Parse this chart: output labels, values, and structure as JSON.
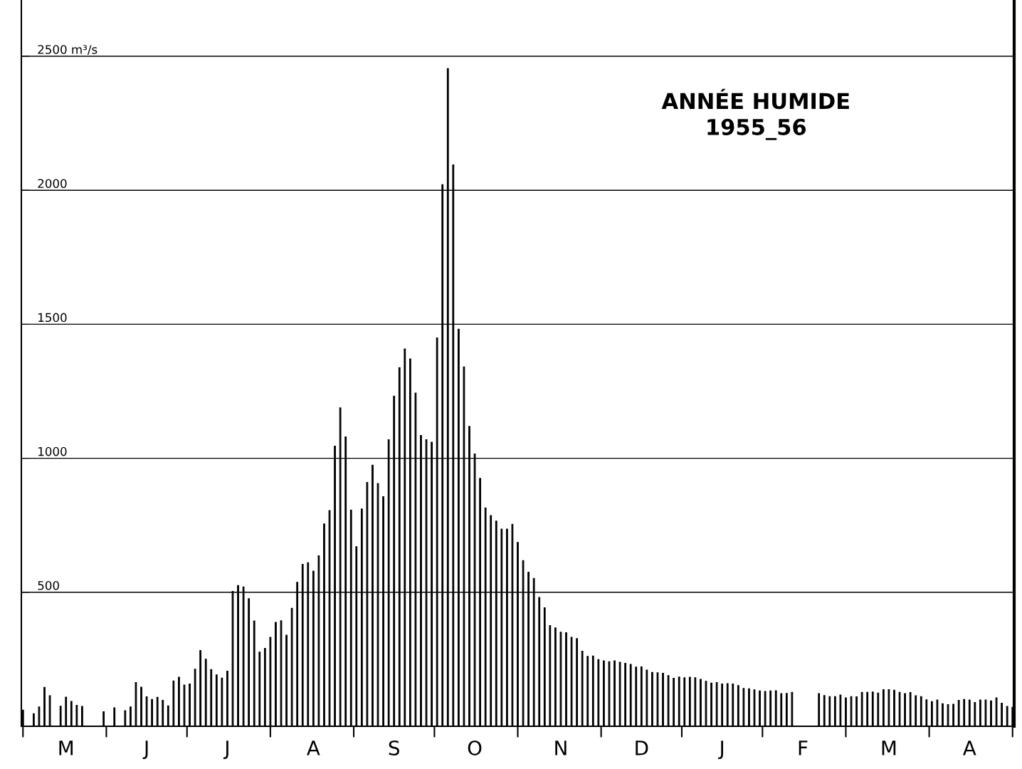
{
  "chart_data": {
    "type": "bar",
    "title": "ANNÉE HUMIDE\n1955_56",
    "categories": [
      null,
      null,
      null,
      null,
      null,
      null,
      null,
      null,
      "M",
      null,
      null,
      null,
      null,
      null,
      null,
      null,
      null,
      null,
      null,
      null,
      null,
      null,
      null,
      "J",
      null,
      null,
      null,
      null,
      null,
      null,
      null,
      null,
      null,
      null,
      null,
      null,
      null,
      null,
      "J",
      null,
      null,
      null,
      null,
      null,
      null,
      null,
      null,
      null,
      null,
      null,
      null,
      null,
      null,
      null,
      "A",
      null,
      null,
      null,
      null,
      null,
      null,
      null,
      null,
      null,
      null,
      null,
      null,
      null,
      null,
      "S",
      null,
      null,
      null,
      null,
      null,
      null,
      null,
      null,
      null,
      null,
      null,
      null,
      null,
      null,
      "O",
      null,
      null,
      null,
      null,
      null,
      null,
      null,
      null,
      null,
      null,
      null,
      null,
      null,
      null,
      null,
      "N",
      null,
      null,
      null,
      null,
      null,
      null,
      null,
      null,
      null,
      null,
      null,
      null,
      null,
      null,
      "D",
      null,
      null,
      null,
      null,
      null,
      null,
      null,
      null,
      null,
      null,
      null,
      null,
      null,
      null,
      "J",
      null,
      null,
      null,
      null,
      null,
      null,
      null,
      null,
      null,
      null,
      null,
      null,
      null,
      null,
      "F",
      null,
      null,
      null,
      null,
      null,
      null,
      null,
      null,
      null,
      null,
      null,
      null,
      null,
      null,
      null,
      "M",
      null,
      null,
      null,
      null,
      null,
      null,
      null,
      null,
      null,
      null,
      null,
      null,
      null,
      null,
      "A",
      null,
      null,
      null,
      null,
      null,
      null,
      null,
      null
    ],
    "values": [
      60,
      null,
      47,
      72,
      145,
      114,
      null,
      75,
      109,
      93,
      78,
      74,
      null,
      null,
      null,
      54,
      null,
      69,
      null,
      58,
      72,
      163,
      146,
      110,
      100,
      108,
      97,
      76,
      169,
      183,
      154,
      158,
      213,
      283,
      250,
      212,
      192,
      180,
      206,
      503,
      525,
      520,
      476,
      393,
      277,
      291,
      332,
      388,
      394,
      340,
      440,
      537,
      604,
      610,
      579,
      636,
      755,
      805,
      1045,
      1188,
      1080,
      807,
      670,
      811,
      910,
      974,
      906,
      857,
      1069,
      1232,
      1338,
      1408,
      1371,
      1243,
      1085,
      1069,
      1060,
      1449,
      2021,
      2454,
      2095,
      1482,
      1341,
      1119,
      1016,
      925,
      815,
      786,
      766,
      736,
      736,
      754,
      686,
      618,
      575,
      552,
      481,
      442,
      376,
      367,
      351,
      349,
      332,
      327,
      280,
      261,
      262,
      249,
      244,
      241,
      244,
      239,
      235,
      231,
      221,
      222,
      210,
      201,
      200,
      198,
      189,
      179,
      184,
      181,
      183,
      181,
      175,
      168,
      161,
      163,
      158,
      159,
      158,
      152,
      141,
      140,
      136,
      132,
      130,
      132,
      133,
      122,
      123,
      127,
      null,
      null,
      null,
      null,
      122,
      115,
      111,
      111,
      117,
      106,
      111,
      110,
      127,
      127,
      128,
      124,
      137,
      137,
      135,
      127,
      122,
      126,
      114,
      111,
      99,
      92,
      98,
      84,
      81,
      82,
      97,
      100,
      98,
      89,
      98,
      98,
      95,
      106,
      86,
      74,
      71
    ],
    "color": "#000000",
    "ylim": [
      0,
      2710
    ],
    "yticks": [
      500,
      1000,
      1500,
      2000,
      {
        "value": 2500,
        "label": "2500 m³/s"
      }
    ],
    "grid": "y"
  }
}
